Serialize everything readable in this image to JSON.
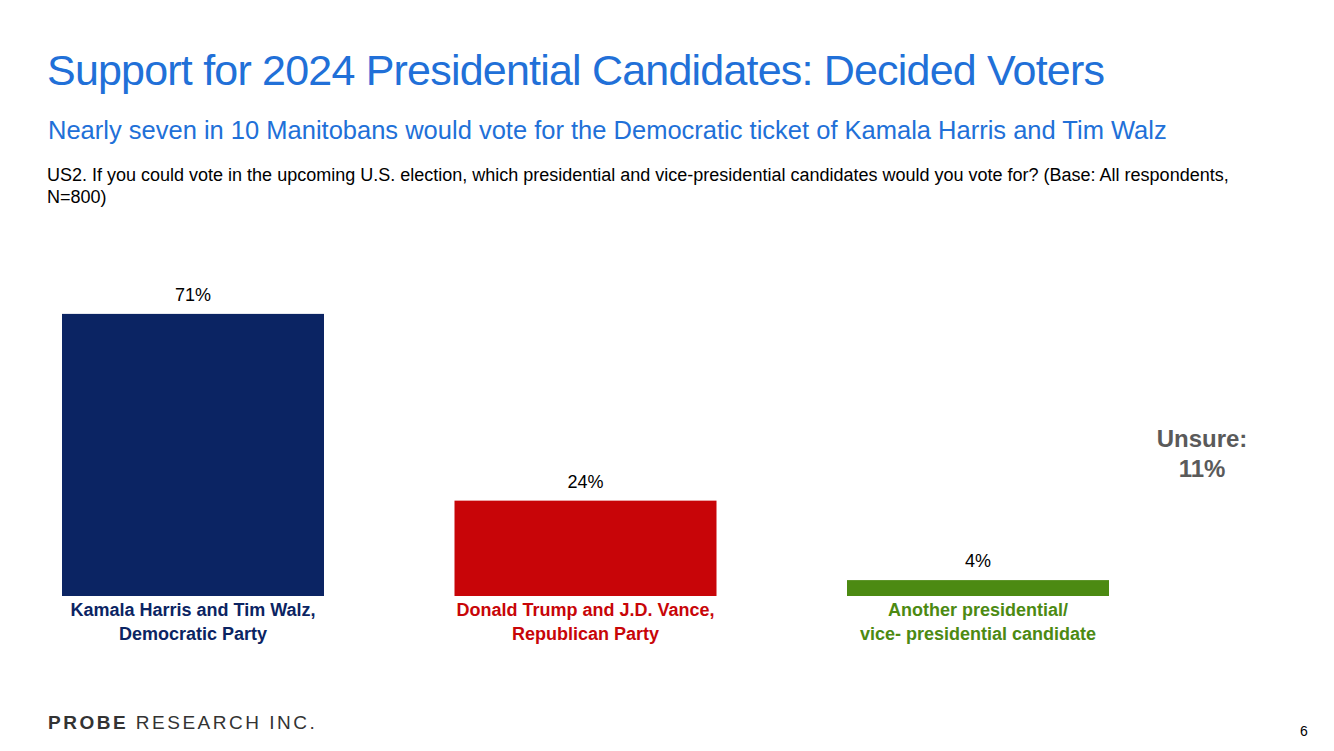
{
  "chart_data": {
    "type": "bar",
    "title": "Support for 2024 Presidential Candidates: Decided Voters",
    "subtitle": "Nearly seven in 10 Manitobans would vote for the Democratic ticket of Kamala Harris and Tim Walz",
    "question": "US2. If you could vote in the upcoming U.S. election, which presidential and vice-presidential candidates would you vote for? (Base: All respondents, N=800)",
    "categories": [
      "Kamala Harris and Tim Walz,\nDemocratic Party",
      "Donald Trump and J.D. Vance,\nRepublican Party",
      "Another presidential/\nvice- presidential candidate"
    ],
    "values": [
      71,
      24,
      4
    ],
    "value_labels": [
      "71%",
      "24%",
      "4%"
    ],
    "colors": [
      "#0b2463",
      "#c80508",
      "#4c8a12"
    ],
    "ylim": [
      0,
      75
    ],
    "data_labels": true,
    "tick_labels": false,
    "grid": false,
    "annotation": "Unsure:\n11%",
    "footer": [
      "PROBE",
      "RESEARCH INC."
    ],
    "page_number": "6"
  }
}
